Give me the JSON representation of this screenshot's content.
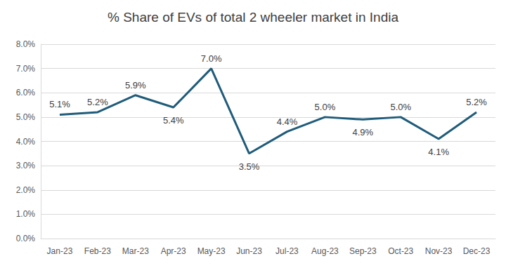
{
  "chart_data": {
    "type": "line",
    "title": "% Share of EVs of total 2 wheeler market in India",
    "categories": [
      "Jan-23",
      "Feb-23",
      "Mar-23",
      "Apr-23",
      "May-23",
      "Jun-23",
      "Jul-23",
      "Aug-23",
      "Sep-23",
      "Oct-23",
      "Nov-23",
      "Dec-23"
    ],
    "values": [
      5.1,
      5.2,
      5.9,
      5.4,
      7.0,
      3.5,
      4.4,
      5.0,
      4.9,
      5.0,
      4.1,
      5.2
    ],
    "value_labels": [
      "5.1%",
      "5.2%",
      "5.9%",
      "5.4%",
      "7.0%",
      "3.5%",
      "4.4%",
      "5.0%",
      "4.9%",
      "5.0%",
      "4.1%",
      "5.2%"
    ],
    "color": "#1f5c7a",
    "ylim": [
      0,
      8
    ],
    "yticks": [
      {
        "value": 0,
        "label": "0.0%"
      },
      {
        "value": 1,
        "label": "1.0%"
      },
      {
        "value": 2,
        "label": "2.0%"
      },
      {
        "value": 3,
        "label": "3.0%"
      },
      {
        "value": 4,
        "label": "4.0%"
      },
      {
        "value": 5,
        "label": "5.0%"
      },
      {
        "value": 6,
        "label": "6.0%"
      },
      {
        "value": 7,
        "label": "7.0%"
      },
      {
        "value": 8,
        "label": "8.0%"
      }
    ],
    "grid": true,
    "data_labels": true
  }
}
